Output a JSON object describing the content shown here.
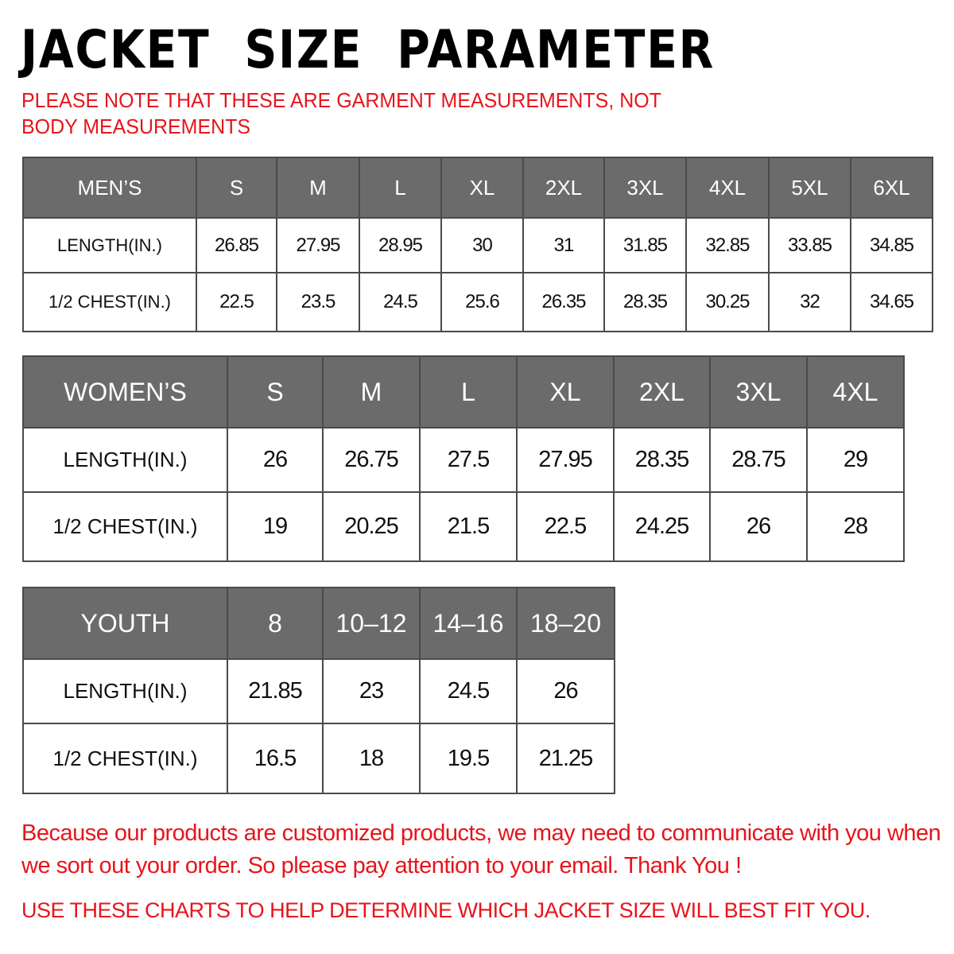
{
  "title": "JACKET  SIZE  PARAMETER",
  "note": "PLEASE NOTE THAT THESE ARE GARMENT MEASUREMENTS, NOT BODY MEASUREMENTS",
  "colors": {
    "header_bg": "#6b6b6b",
    "accent_red": "#e8141b"
  },
  "mens": {
    "header": [
      "MEN’S",
      "S",
      "M",
      "L",
      "XL",
      "2XL",
      "3XL",
      "4XL",
      "5XL",
      "6XL"
    ],
    "rows": [
      [
        "LENGTH(IN.)",
        "26.85",
        "27.95",
        "28.95",
        "30",
        "31",
        "31.85",
        "32.85",
        "33.85",
        "34.85"
      ],
      [
        "1/2 CHEST(IN.)",
        "22.5",
        "23.5",
        "24.5",
        "25.6",
        "26.35",
        "28.35",
        "30.25",
        "32",
        "34.65"
      ]
    ]
  },
  "womens": {
    "header": [
      "WOMEN’S",
      "S",
      "M",
      "L",
      "XL",
      "2XL",
      "3XL",
      "4XL"
    ],
    "rows": [
      [
        "LENGTH(IN.)",
        "26",
        "26.75",
        "27.5",
        "27.95",
        "28.35",
        "28.75",
        "29"
      ],
      [
        "1/2 CHEST(IN.)",
        "19",
        "20.25",
        "21.5",
        "22.5",
        "24.25",
        "26",
        "28"
      ]
    ]
  },
  "youth": {
    "header": [
      "YOUTH",
      "8",
      "10–12",
      "14–16",
      "18–20"
    ],
    "rows": [
      [
        "LENGTH(IN.)",
        "21.85",
        "23",
        "24.5",
        "26"
      ],
      [
        "1/2 CHEST(IN.)",
        "16.5",
        "18",
        "19.5",
        "21.25"
      ]
    ]
  },
  "footer": {
    "message": "Because our products are customized products, we may need to communicate with you when we sort out your order. So please pay attention to your email. Thank You !",
    "instruction": "USE THESE CHARTS TO HELP DETERMINE WHICH JACKET SIZE WILL BEST FIT YOU."
  }
}
